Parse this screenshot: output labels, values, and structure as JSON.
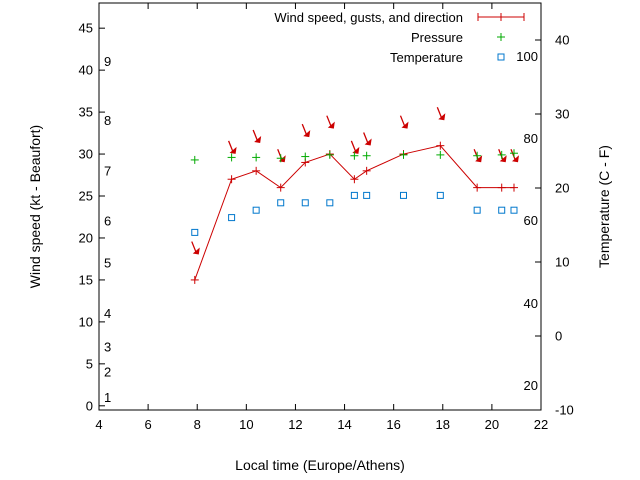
{
  "chart_data": {
    "type": "line",
    "xlabel": "Local time (Europe/Athens)",
    "ylabel": "Wind speed (kt - Beaufort)",
    "y2label": "Temperature (C - F)",
    "xlim": [
      4,
      22
    ],
    "ylim": [
      -0.5,
      48
    ],
    "y2lim": [
      -10,
      45
    ],
    "x_ticks": [
      "4",
      "6",
      "8",
      "10",
      "12",
      "14",
      "16",
      "18",
      "20",
      "22"
    ],
    "y_ticks": [
      "0",
      "5",
      "10",
      "15",
      "20",
      "25",
      "30",
      "35",
      "40",
      "45"
    ],
    "y2_ticks": [
      "-10",
      "0",
      "10",
      "20",
      "30",
      "40"
    ],
    "fahrenheit_ticks": [
      {
        "label": "20",
        "celsius": -6.7
      },
      {
        "label": "40",
        "celsius": 4.4
      },
      {
        "label": "60",
        "celsius": 15.6
      },
      {
        "label": "80",
        "celsius": 26.7
      },
      {
        "label": "100",
        "celsius": 37.8
      }
    ],
    "beaufort_ticks": [
      {
        "label": "1",
        "kt": 1
      },
      {
        "label": "2",
        "kt": 4
      },
      {
        "label": "3",
        "kt": 7
      },
      {
        "label": "4",
        "kt": 11
      },
      {
        "label": "5",
        "kt": 17
      },
      {
        "label": "6",
        "kt": 22
      },
      {
        "label": "7",
        "kt": 28
      },
      {
        "label": "8",
        "kt": 34
      },
      {
        "label": "9",
        "kt": 41
      }
    ],
    "legend_position": "top-right",
    "series": [
      {
        "name": "Wind speed, gusts, and direction",
        "color": "#cc0000",
        "marker": "plus-line",
        "x": [
          7.9,
          9.4,
          10.4,
          11.4,
          12.4,
          13.4,
          14.4,
          14.9,
          16.4,
          17.9,
          19.4,
          20.4,
          20.9
        ],
        "values": [
          15,
          27,
          28,
          26,
          29,
          30,
          27,
          28,
          30,
          31,
          26,
          26,
          26
        ]
      },
      {
        "name": "Pressure",
        "color": "#00aa00",
        "marker": "plus",
        "x": [
          7.9,
          9.4,
          10.4,
          11.4,
          12.4,
          13.4,
          14.4,
          14.9,
          16.4,
          17.9,
          19.4,
          20.4,
          20.9
        ],
        "values": [
          29.3,
          29.6,
          29.6,
          29.5,
          29.7,
          29.9,
          29.8,
          29.8,
          29.9,
          29.9,
          29.8,
          29.9,
          30.1
        ]
      },
      {
        "name": "Temperature",
        "color": "#0077cc",
        "marker": "square",
        "axis": "right",
        "x": [
          7.9,
          9.4,
          10.4,
          11.4,
          12.4,
          13.4,
          14.4,
          14.9,
          16.4,
          17.9,
          19.4,
          20.4,
          20.9
        ],
        "values": [
          14,
          16,
          17,
          18,
          18,
          18,
          19,
          19,
          19,
          19,
          17,
          17,
          17
        ]
      }
    ],
    "wind_direction_arrows": {
      "color": "#cc0000",
      "x": [
        7.9,
        9.4,
        10.4,
        11.4,
        12.4,
        13.4,
        14.4,
        14.9,
        16.4,
        17.9,
        19.4,
        20.4,
        20.9
      ],
      "y": [
        18.5,
        30.5,
        31.8,
        29.5,
        32.5,
        33.5,
        30.5,
        31.5,
        33.5,
        34.5,
        29.5,
        29.5,
        29.5
      ]
    }
  }
}
